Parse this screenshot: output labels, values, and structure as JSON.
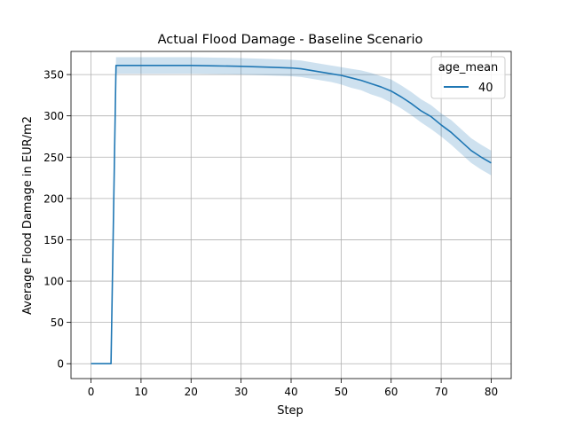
{
  "chart_data": {
    "type": "line",
    "title": "Actual Flood Damage - Baseline Scenario",
    "xlabel": "Step",
    "ylabel": "Average Flood Damage in EUR/m2",
    "xlim": [
      -4,
      84
    ],
    "ylim": [
      -18,
      378
    ],
    "xticks": [
      0,
      10,
      20,
      30,
      40,
      50,
      60,
      70,
      80
    ],
    "yticks": [
      0,
      50,
      100,
      150,
      200,
      250,
      300,
      350
    ],
    "grid": true,
    "legend": {
      "title": "age_mean",
      "placement": "top-right",
      "entries": [
        "40"
      ]
    },
    "series": [
      {
        "name": "40",
        "color": "#1f77b4",
        "x": [
          0,
          1,
          2,
          3,
          4,
          5,
          10,
          15,
          20,
          25,
          30,
          35,
          40,
          42,
          44,
          46,
          48,
          50,
          52,
          54,
          56,
          58,
          60,
          62,
          64,
          66,
          68,
          70,
          72,
          74,
          76,
          78,
          80
        ],
        "y": [
          0,
          0,
          0,
          0,
          0,
          361,
          361,
          361,
          361,
          360.5,
          360,
          359,
          358,
          357,
          355,
          353,
          351,
          349,
          346,
          343,
          339,
          335,
          330,
          323,
          315,
          306,
          299,
          289,
          280,
          269,
          258,
          250,
          243
        ],
        "ci_lower": [
          0,
          0,
          0,
          0,
          0,
          351,
          351,
          351,
          351,
          350.5,
          350,
          349,
          348,
          347,
          345,
          343,
          341,
          338,
          334,
          331,
          326,
          322,
          316,
          309,
          301,
          292,
          284,
          275,
          265,
          254,
          243,
          235,
          228
        ],
        "ci_upper": [
          0,
          0,
          0,
          0,
          0,
          371,
          371,
          371,
          371,
          370.5,
          370,
          369,
          368,
          367,
          365,
          363,
          361,
          359,
          357,
          355,
          352,
          348,
          344,
          337,
          329,
          320,
          313,
          303,
          295,
          284,
          273,
          265,
          258
        ]
      }
    ]
  }
}
